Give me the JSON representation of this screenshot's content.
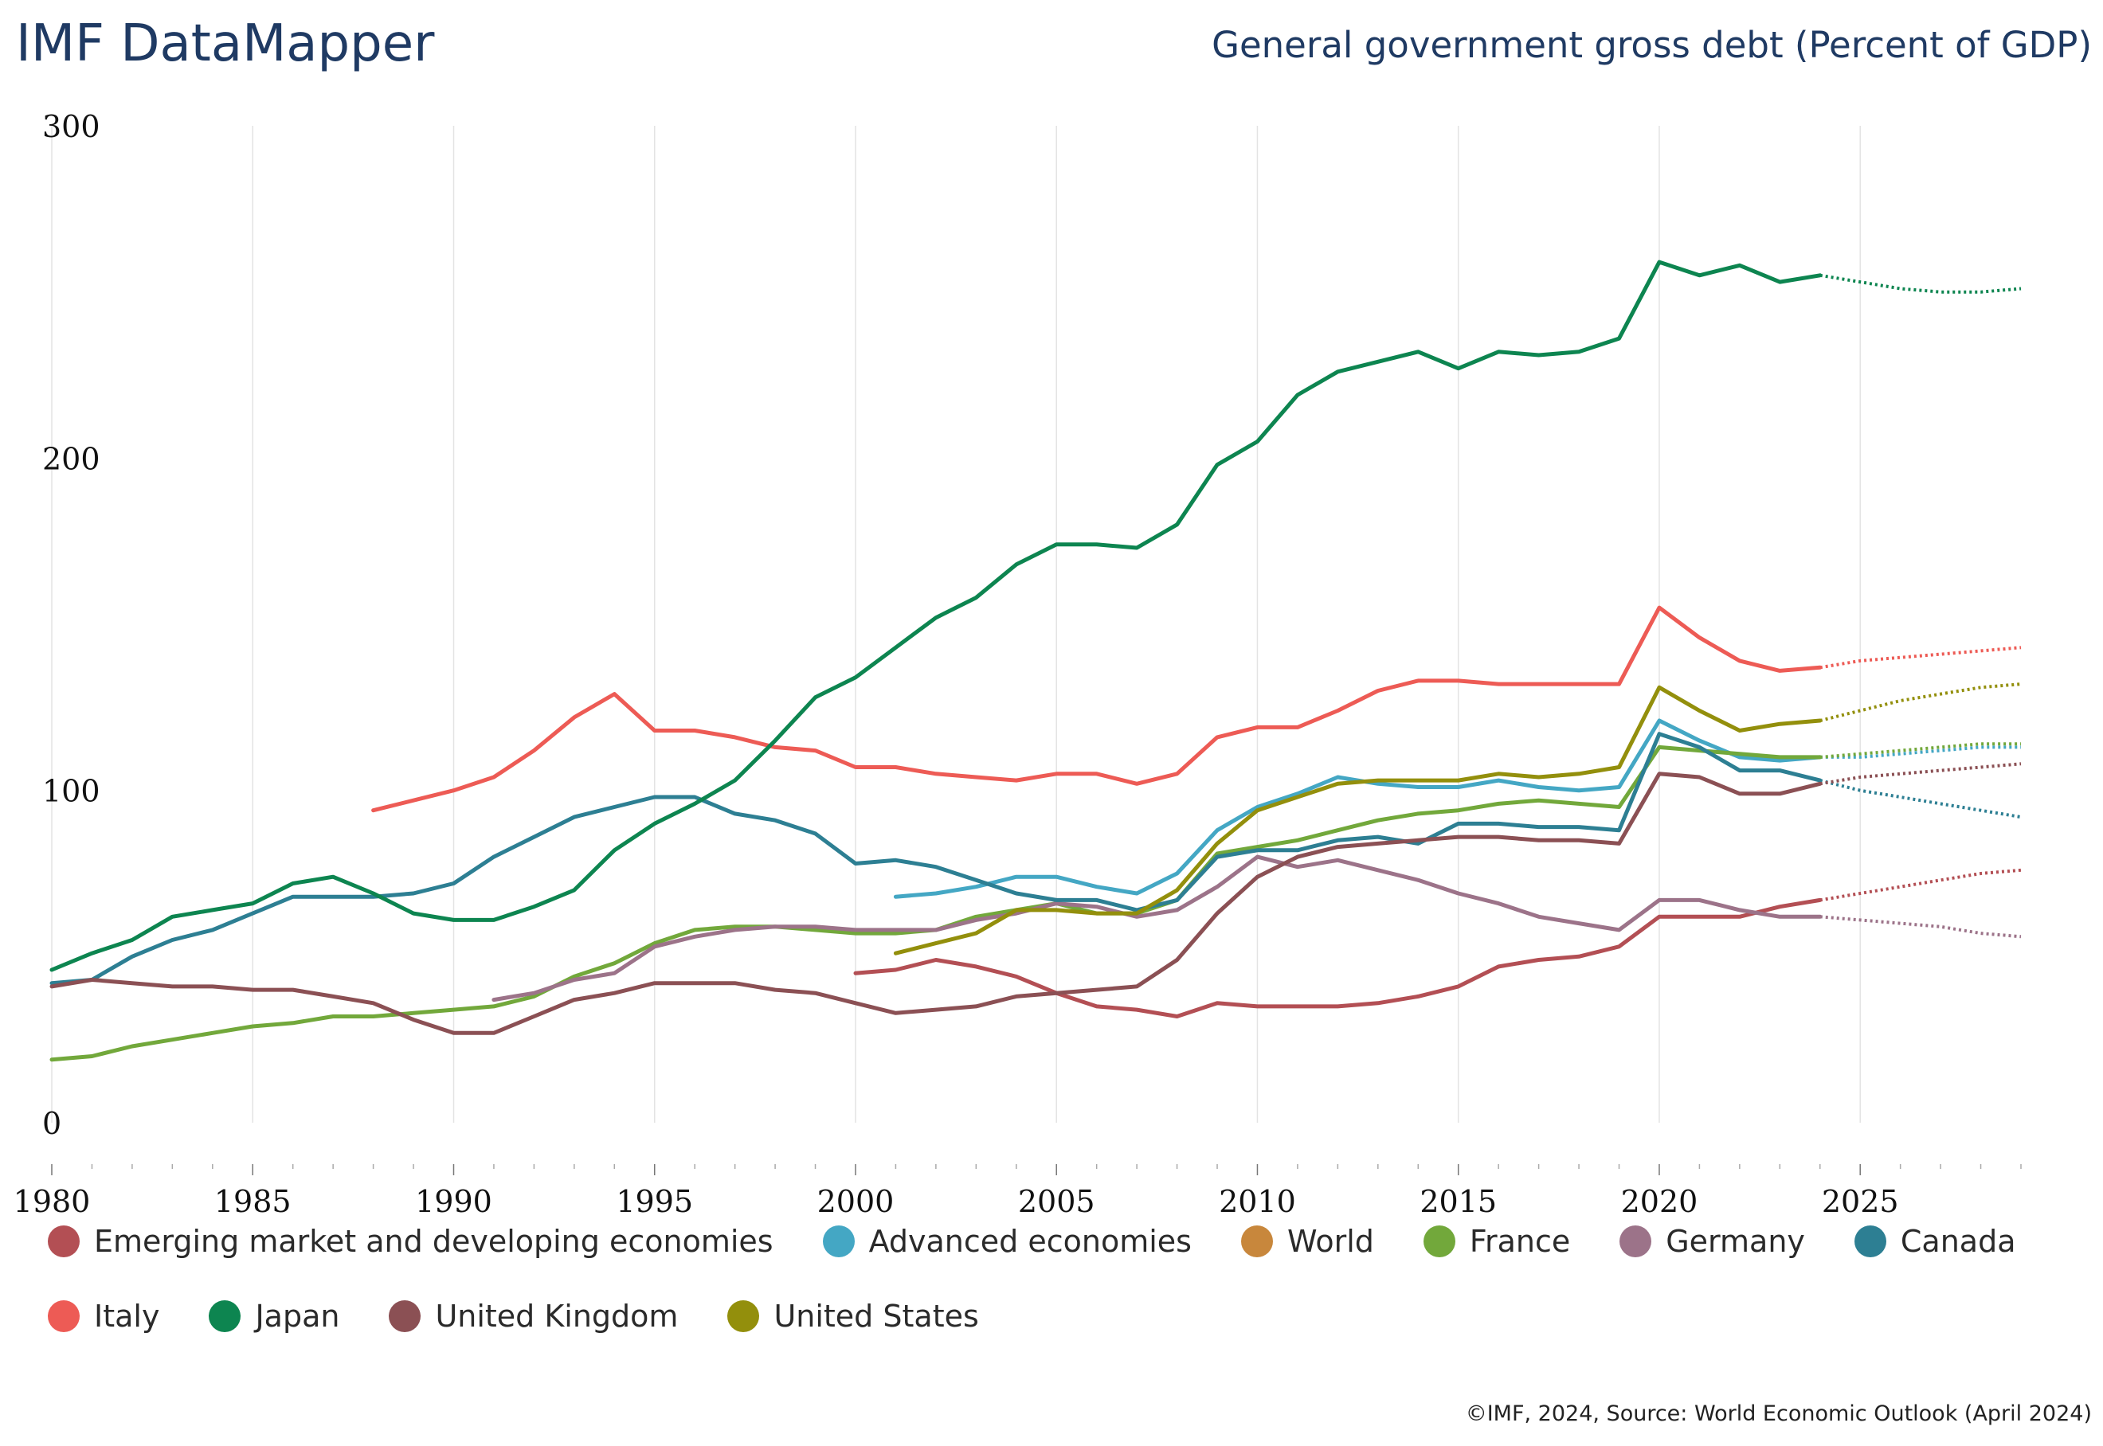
{
  "header": {
    "brand": "IMF DataMapper",
    "title": "General government gross debt (Percent of GDP)"
  },
  "source": "©IMF, 2024, Source: World Economic Outlook (April 2024)",
  "chart_data": {
    "type": "line",
    "title": "General government gross debt (Percent of GDP)",
    "xlabel": "",
    "ylabel": "",
    "xlim": [
      1980,
      2029
    ],
    "ylim": [
      0,
      300
    ],
    "x_ticks": [
      1980,
      1985,
      1990,
      1995,
      2000,
      2005,
      2010,
      2015,
      2020,
      2025
    ],
    "y_ticks": [
      0,
      100,
      200,
      300
    ],
    "grid": "vertical",
    "legend": "bottom",
    "projection_start": 2024,
    "series": [
      {
        "name": "Emerging market and developing economies",
        "color": "#b34f54",
        "start": 2000,
        "values": [
          45,
          46,
          49,
          47,
          44,
          39,
          35,
          34,
          32,
          36,
          35,
          35,
          35,
          36,
          38,
          41,
          47,
          49,
          50,
          53,
          62,
          62,
          62,
          65,
          67,
          69,
          71,
          73,
          75,
          76
        ]
      },
      {
        "name": "Advanced economies",
        "color": "#44a7c4",
        "start": 2001,
        "values": [
          68,
          69,
          71,
          74,
          74,
          71,
          69,
          75,
          88,
          95,
          99,
          104,
          102,
          101,
          101,
          103,
          101,
          100,
          101,
          121,
          115,
          110,
          109,
          110,
          110,
          111,
          112,
          113,
          113
        ]
      },
      {
        "name": "World",
        "color": "#c8873c",
        "values": []
      },
      {
        "name": "France",
        "color": "#72a83b",
        "start": 1980,
        "values": [
          19,
          20,
          23,
          25,
          27,
          29,
          30,
          32,
          32,
          33,
          34,
          35,
          38,
          44,
          48,
          54,
          58,
          59,
          59,
          58,
          57,
          57,
          58,
          62,
          64,
          66,
          63,
          63,
          67,
          81,
          83,
          85,
          88,
          91,
          93,
          94,
          96,
          97,
          96,
          95,
          113,
          112,
          111,
          110,
          110,
          111,
          112,
          113,
          114,
          114
        ]
      },
      {
        "name": "Germany",
        "color": "#9c7389",
        "start": 1991,
        "values": [
          37,
          39,
          43,
          45,
          53,
          56,
          58,
          59,
          59,
          58,
          58,
          58,
          61,
          63,
          66,
          65,
          62,
          64,
          71,
          80,
          77,
          79,
          76,
          73,
          69,
          66,
          62,
          60,
          58,
          67,
          67,
          64,
          62,
          62,
          61,
          60,
          59,
          57,
          56
        ]
      },
      {
        "name": "Canada",
        "color": "#2d7f93",
        "start": 1980,
        "values": [
          42,
          43,
          50,
          55,
          58,
          63,
          68,
          68,
          68,
          69,
          72,
          80,
          86,
          92,
          95,
          98,
          98,
          93,
          91,
          87,
          78,
          79,
          77,
          73,
          69,
          67,
          67,
          64,
          67,
          80,
          82,
          82,
          85,
          86,
          84,
          90,
          90,
          89,
          89,
          88,
          117,
          113,
          106,
          106,
          103,
          100,
          98,
          96,
          94,
          92
        ]
      },
      {
        "name": "Italy",
        "color": "#ed5b55",
        "start": 1988,
        "values": [
          94,
          97,
          100,
          104,
          112,
          122,
          129,
          118,
          118,
          116,
          113,
          112,
          107,
          107,
          105,
          104,
          103,
          105,
          105,
          102,
          105,
          116,
          119,
          119,
          124,
          130,
          133,
          133,
          132,
          132,
          132,
          132,
          155,
          146,
          139,
          136,
          137,
          139,
          140,
          141,
          142,
          143
        ]
      },
      {
        "name": "Japan",
        "color": "#0d8550",
        "start": 1980,
        "values": [
          46,
          51,
          55,
          62,
          64,
          66,
          72,
          74,
          69,
          63,
          61,
          61,
          65,
          70,
          82,
          90,
          96,
          103,
          115,
          128,
          134,
          143,
          152,
          158,
          168,
          174,
          174,
          173,
          180,
          198,
          205,
          219,
          226,
          229,
          232,
          227,
          232,
          231,
          232,
          236,
          259,
          255,
          258,
          253,
          255,
          253,
          251,
          250,
          250,
          251
        ]
      },
      {
        "name": "United Kingdom",
        "color": "#8b5054",
        "start": 1980,
        "values": [
          41,
          43,
          42,
          41,
          41,
          40,
          40,
          38,
          36,
          31,
          27,
          27,
          32,
          37,
          39,
          42,
          42,
          42,
          40,
          39,
          36,
          33,
          34,
          35,
          38,
          39,
          40,
          41,
          49,
          63,
          74,
          80,
          83,
          84,
          85,
          86,
          86,
          85,
          85,
          84,
          105,
          104,
          99,
          99,
          102,
          104,
          105,
          106,
          107,
          108
        ]
      },
      {
        "name": "United States",
        "color": "#938f0c",
        "start": 2001,
        "values": [
          51,
          54,
          57,
          64,
          64,
          63,
          63,
          70,
          84,
          94,
          98,
          102,
          103,
          103,
          103,
          105,
          104,
          105,
          107,
          131,
          124,
          118,
          120,
          121,
          124,
          127,
          129,
          131,
          132
        ]
      }
    ]
  },
  "legend": {
    "items": [
      {
        "label": "Emerging market and developing economies",
        "color": "#b34f54"
      },
      {
        "label": "Advanced economies",
        "color": "#44a7c4"
      },
      {
        "label": "World",
        "color": "#c8873c"
      },
      {
        "label": "France",
        "color": "#72a83b"
      },
      {
        "label": "Germany",
        "color": "#9c7389"
      },
      {
        "label": "Canada",
        "color": "#2d7f93"
      },
      {
        "label": "Italy",
        "color": "#ed5b55"
      },
      {
        "label": "Japan",
        "color": "#0d8550"
      },
      {
        "label": "United Kingdom",
        "color": "#8b5054"
      },
      {
        "label": "United States",
        "color": "#938f0c"
      }
    ]
  }
}
